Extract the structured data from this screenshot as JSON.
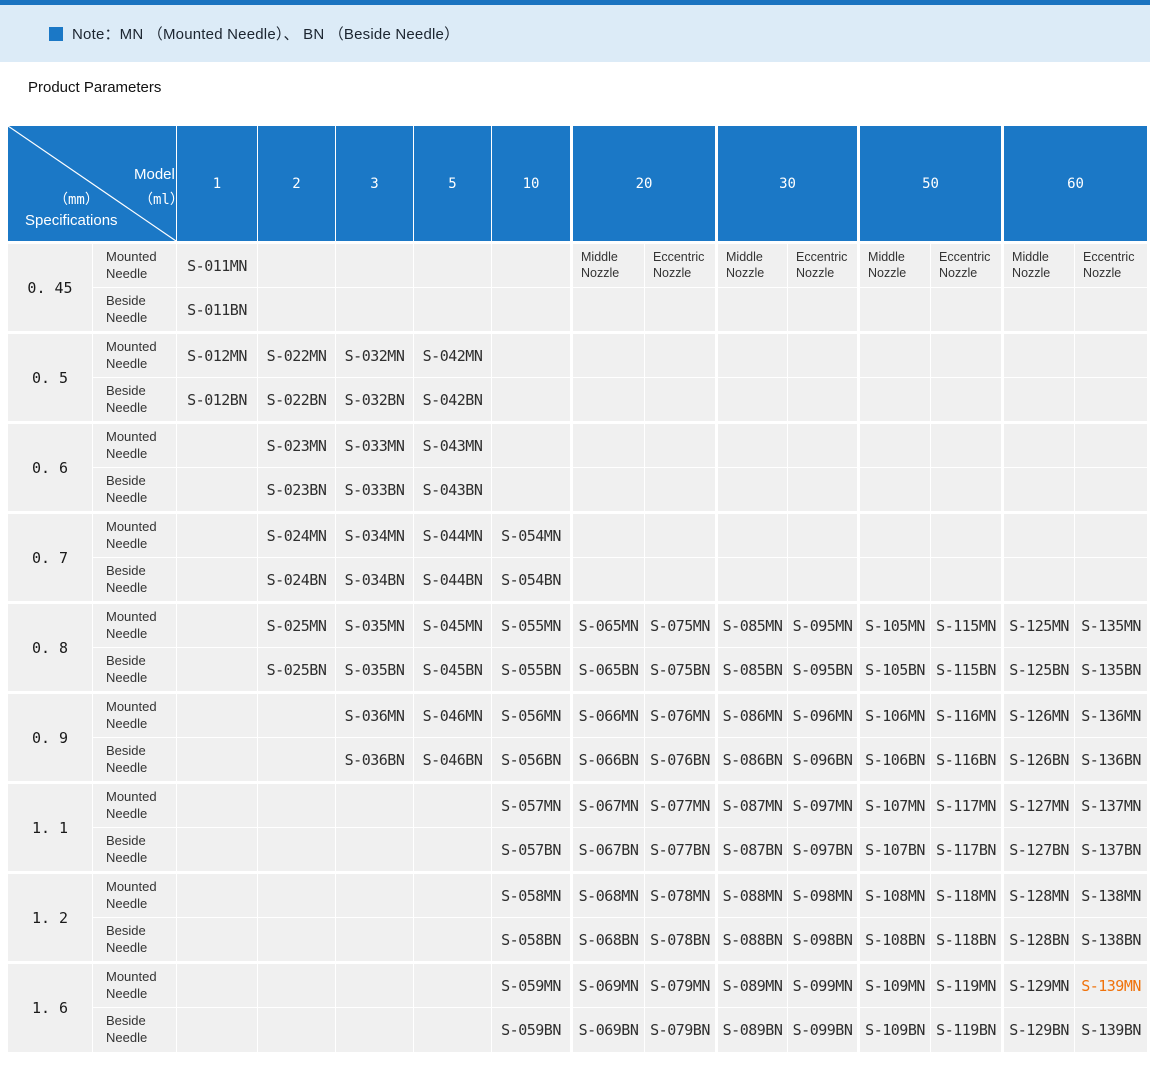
{
  "page": {
    "note": "Note：MN （Mounted Needle）、 BN （Beside Needle）",
    "section_title": "Product Parameters"
  },
  "colors": {
    "header_blue": "#1b78c6",
    "top_bar_blue": "#1a73c0",
    "banner_bg": "#dcebf7",
    "cell_bg": "#f0f0f0",
    "highlight_orange": "#f0720a"
  },
  "table": {
    "corner": {
      "top_label": "Model",
      "top_unit": "（ml）",
      "bottom_unit": "（mm）",
      "bottom_label": "Specifications"
    },
    "model_columns": [
      {
        "label": "1"
      },
      {
        "label": "2"
      },
      {
        "label": "3"
      },
      {
        "label": "5"
      },
      {
        "label": "10"
      },
      {
        "label": "20"
      },
      {
        "label": "30"
      },
      {
        "label": "50"
      },
      {
        "label": "60"
      }
    ],
    "nozzle_sublabels": [
      "Middle Nozzle",
      "Eccentric Nozzle"
    ],
    "needle_labels": {
      "mounted": "Mounted Needle",
      "beside": "Beside Needle"
    },
    "highlight": {
      "row_index": 8,
      "needle": "mounted",
      "col_index": 12,
      "code": "S-139MN"
    },
    "rows": [
      {
        "spec": "0. 45",
        "mounted": [
          "S-011MN",
          "",
          "",
          "",
          "",
          "",
          "",
          "",
          "",
          "",
          "",
          "",
          ""
        ],
        "beside": [
          "S-011BN",
          "",
          "",
          "",
          "",
          "",
          "",
          "",
          "",
          "",
          "",
          "",
          ""
        ]
      },
      {
        "spec": "0. 5",
        "mounted": [
          "S-012MN",
          "S-022MN",
          "S-032MN",
          "S-042MN",
          "",
          "",
          "",
          "",
          "",
          "",
          "",
          "",
          ""
        ],
        "beside": [
          "S-012BN",
          "S-022BN",
          "S-032BN",
          "S-042BN",
          "",
          "",
          "",
          "",
          "",
          "",
          "",
          "",
          ""
        ]
      },
      {
        "spec": "0. 6",
        "mounted": [
          "",
          "S-023MN",
          "S-033MN",
          "S-043MN",
          "",
          "",
          "",
          "",
          "",
          "",
          "",
          "",
          ""
        ],
        "beside": [
          "",
          "S-023BN",
          "S-033BN",
          "S-043BN",
          "",
          "",
          "",
          "",
          "",
          "",
          "",
          "",
          ""
        ]
      },
      {
        "spec": "0. 7",
        "mounted": [
          "",
          "S-024MN",
          "S-034MN",
          "S-044MN",
          "S-054MN",
          "",
          "",
          "",
          "",
          "",
          "",
          "",
          ""
        ],
        "beside": [
          "",
          "S-024BN",
          "S-034BN",
          "S-044BN",
          "S-054BN",
          "",
          "",
          "",
          "",
          "",
          "",
          "",
          ""
        ]
      },
      {
        "spec": "0. 8",
        "mounted": [
          "",
          "S-025MN",
          "S-035MN",
          "S-045MN",
          "S-055MN",
          "S-065MN",
          "S-075MN",
          "S-085MN",
          "S-095MN",
          "S-105MN",
          "S-115MN",
          "S-125MN",
          "S-135MN"
        ],
        "beside": [
          "",
          "S-025BN",
          "S-035BN",
          "S-045BN",
          "S-055BN",
          "S-065BN",
          "S-075BN",
          "S-085BN",
          "S-095BN",
          "S-105BN",
          "S-115BN",
          "S-125BN",
          "S-135BN"
        ]
      },
      {
        "spec": "0. 9",
        "mounted": [
          "",
          "",
          "S-036MN",
          "S-046MN",
          "S-056MN",
          "S-066MN",
          "S-076MN",
          "S-086MN",
          "S-096MN",
          "S-106MN",
          "S-116MN",
          "S-126MN",
          "S-136MN"
        ],
        "beside": [
          "",
          "",
          "S-036BN",
          "S-046BN",
          "S-056BN",
          "S-066BN",
          "S-076BN",
          "S-086BN",
          "S-096BN",
          "S-106BN",
          "S-116BN",
          "S-126BN",
          "S-136BN"
        ]
      },
      {
        "spec": "1. 1",
        "mounted": [
          "",
          "",
          "",
          "",
          "S-057MN",
          "S-067MN",
          "S-077MN",
          "S-087MN",
          "S-097MN",
          "S-107MN",
          "S-117MN",
          "S-127MN",
          "S-137MN"
        ],
        "beside": [
          "",
          "",
          "",
          "",
          "S-057BN",
          "S-067BN",
          "S-077BN",
          "S-087BN",
          "S-097BN",
          "S-107BN",
          "S-117BN",
          "S-127BN",
          "S-137BN"
        ]
      },
      {
        "spec": "1. 2",
        "mounted": [
          "",
          "",
          "",
          "",
          "S-058MN",
          "S-068MN",
          "S-078MN",
          "S-088MN",
          "S-098MN",
          "S-108MN",
          "S-118MN",
          "S-128MN",
          "S-138MN"
        ],
        "beside": [
          "",
          "",
          "",
          "",
          "S-058BN",
          "S-068BN",
          "S-078BN",
          "S-088BN",
          "S-098BN",
          "S-108BN",
          "S-118BN",
          "S-128BN",
          "S-138BN"
        ]
      },
      {
        "spec": "1. 6",
        "mounted": [
          "",
          "",
          "",
          "",
          "S-059MN",
          "S-069MN",
          "S-079MN",
          "S-089MN",
          "S-099MN",
          "S-109MN",
          "S-119MN",
          "S-129MN",
          "S-139MN"
        ],
        "beside": [
          "",
          "",
          "",
          "",
          "S-059BN",
          "S-069BN",
          "S-079BN",
          "S-089BN",
          "S-099BN",
          "S-109BN",
          "S-119BN",
          "S-129BN",
          "S-139BN"
        ]
      }
    ]
  }
}
